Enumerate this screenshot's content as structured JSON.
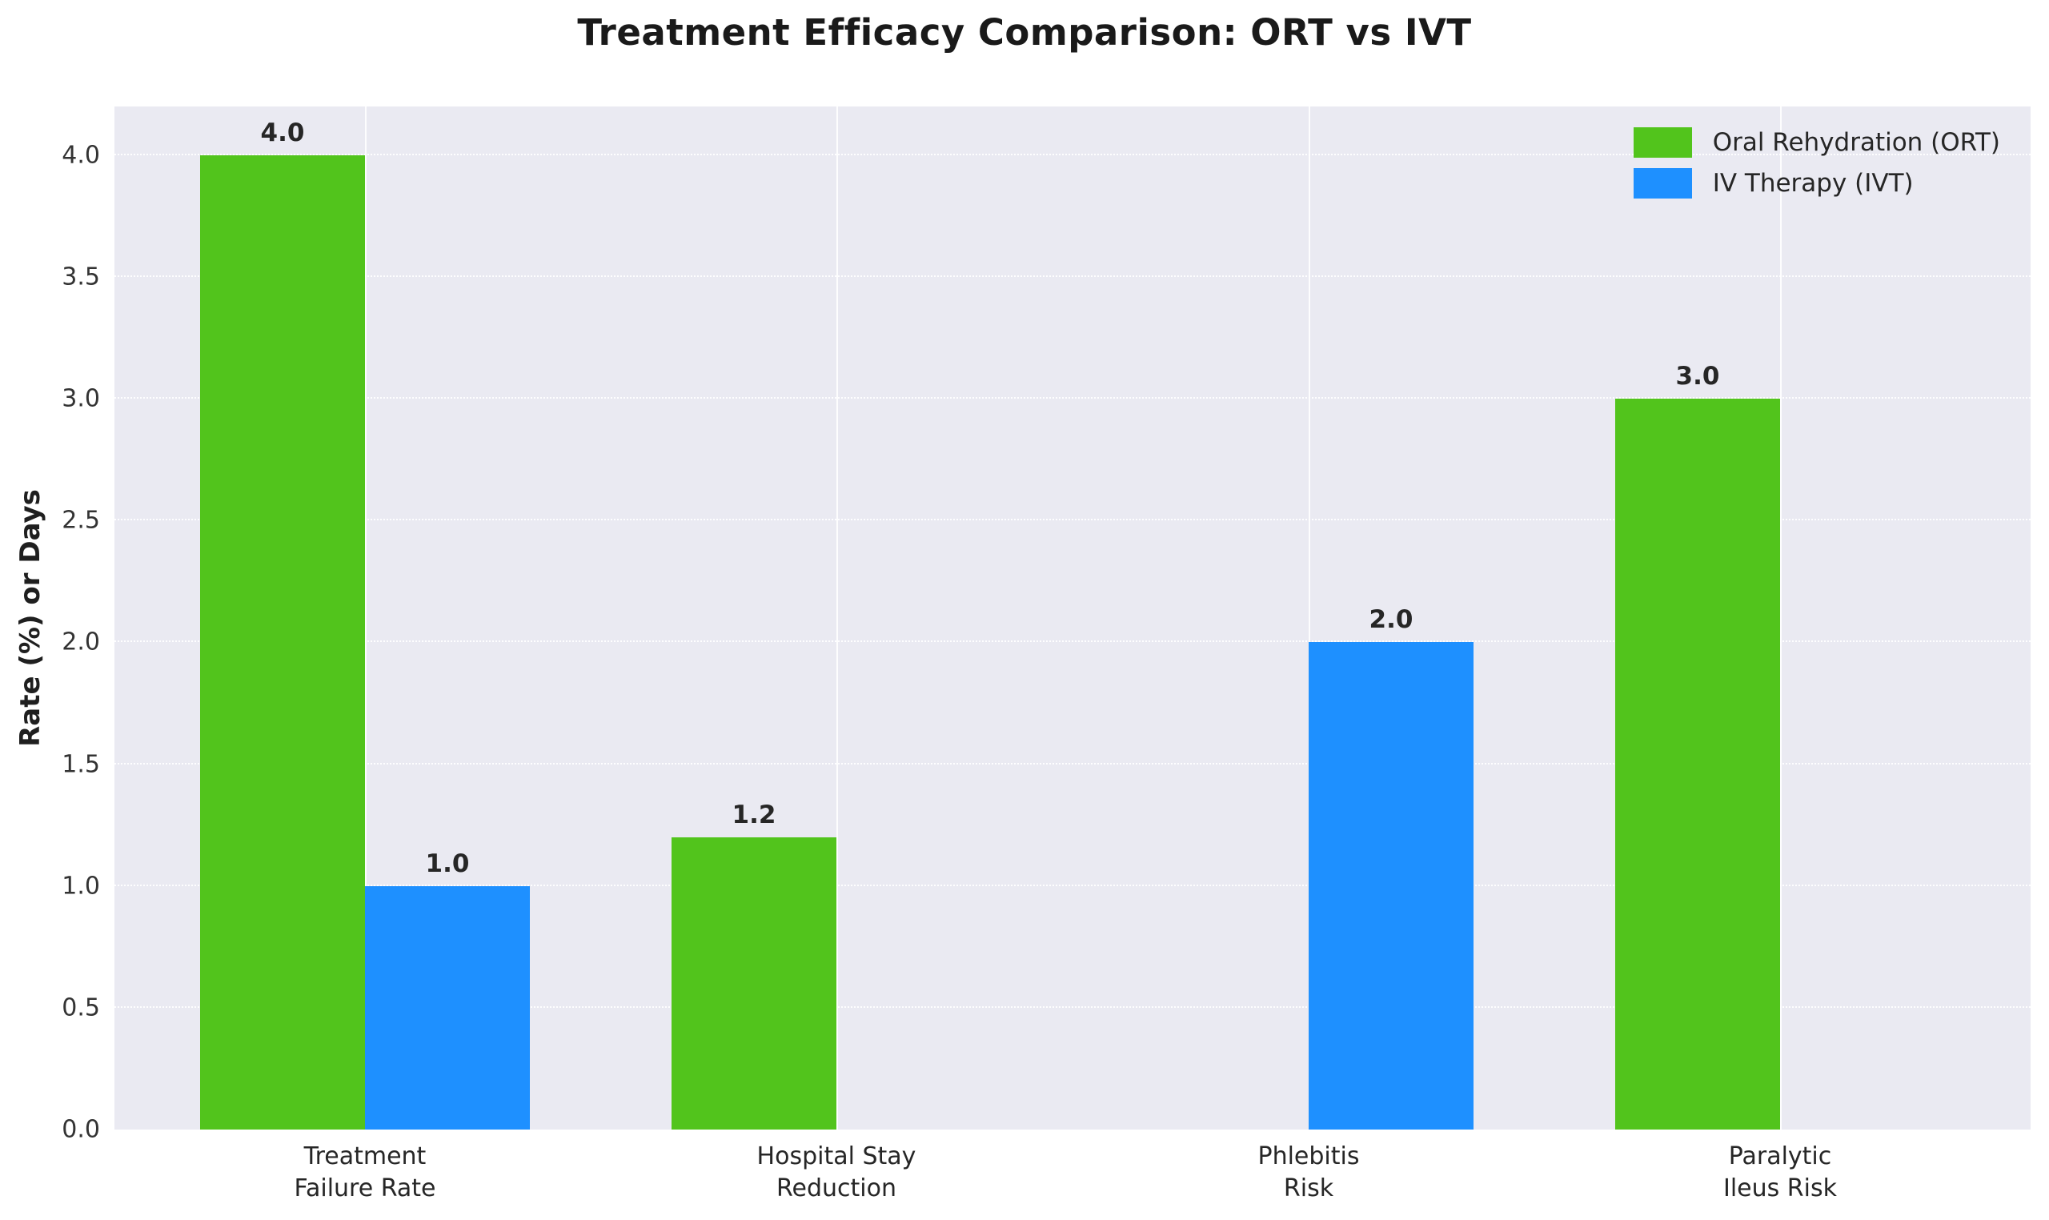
{
  "chart_data": {
    "type": "bar",
    "title": "Treatment Efficacy Comparison: ORT vs IVT",
    "ylabel": "Rate (%) or Days",
    "xlabel": "",
    "categories": [
      "Treatment\nFailure Rate",
      "Hospital Stay\nReduction",
      "Phlebitis\nRisk",
      "Paralytic\nIleus Risk"
    ],
    "series": [
      {
        "name": "Oral Rehydration (ORT)",
        "color": "#52c41c",
        "values": [
          4.0,
          1.2,
          0,
          3.0
        ],
        "value_labels": [
          "4.0",
          "1.2",
          "",
          "3.0"
        ]
      },
      {
        "name": "IV Therapy (IVT)",
        "color": "#1e90ff",
        "values": [
          1.0,
          0,
          2.0,
          0
        ],
        "value_labels": [
          "1.0",
          "",
          "2.0",
          ""
        ]
      }
    ],
    "y_tick_labels": [
      "0.0",
      "0.5",
      "1.0",
      "1.5",
      "2.0",
      "2.5",
      "3.0",
      "3.5",
      "4.0"
    ],
    "y_ticks": [
      0.0,
      0.5,
      1.0,
      1.5,
      2.0,
      2.5,
      3.0,
      3.5,
      4.0
    ],
    "ylim": [
      0,
      4.2
    ],
    "grid": true,
    "legend_position": "upper right",
    "colors": {
      "plot_background": "#eaeaf2",
      "grid_line": "#ffffff",
      "tick_text": "#333333",
      "label_text": "#262626",
      "title_text": "#1a1a1a",
      "figure_background": "#ffffff"
    }
  }
}
